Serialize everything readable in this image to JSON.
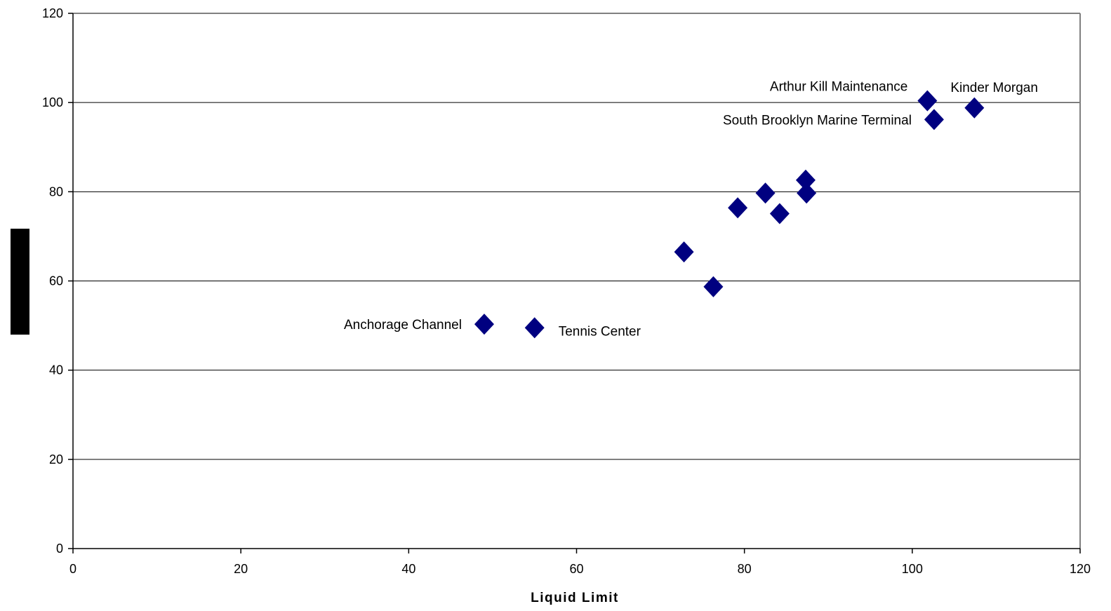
{
  "chart_data": {
    "type": "scatter",
    "title": "",
    "xlabel": "Liquid Limit",
    "ylabel": "",
    "xlim": [
      0,
      120
    ],
    "ylim": [
      0,
      120
    ],
    "x_ticks": [
      0,
      20,
      40,
      60,
      80,
      100,
      120
    ],
    "y_ticks": [
      0,
      20,
      40,
      60,
      80,
      100,
      120
    ],
    "grid": "horizontal",
    "legend": "none",
    "marker": "diamond",
    "marker_color": "#000080",
    "points": [
      {
        "x": 49,
        "y": 50.3,
        "label": "Anchorage Channel"
      },
      {
        "x": 55,
        "y": 49.5,
        "label": "Tennis Center"
      },
      {
        "x": 72.8,
        "y": 66.5,
        "label": ""
      },
      {
        "x": 76.3,
        "y": 58.7,
        "label": ""
      },
      {
        "x": 79.2,
        "y": 76.4,
        "label": ""
      },
      {
        "x": 82.5,
        "y": 79.7,
        "label": ""
      },
      {
        "x": 84.2,
        "y": 75.1,
        "label": ""
      },
      {
        "x": 87.3,
        "y": 82.6,
        "label": ""
      },
      {
        "x": 87.4,
        "y": 79.7,
        "label": ""
      },
      {
        "x": 101.8,
        "y": 100.4,
        "label": "Arthur Kill Maintenance"
      },
      {
        "x": 102.6,
        "y": 96.2,
        "label": "South Brooklyn Marine Terminal"
      },
      {
        "x": 107.4,
        "y": 98.8,
        "label": "Kinder Morgan"
      }
    ]
  }
}
